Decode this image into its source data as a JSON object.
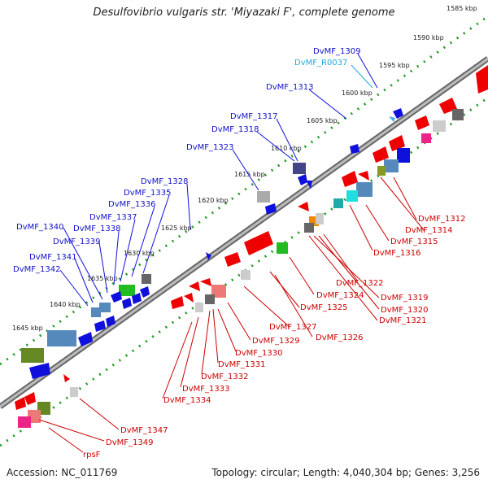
{
  "title": "Desulfovibrio vulgaris str. 'Miyazaki F', complete genome",
  "footer": {
    "accession": "Accession: NC_011769",
    "stats": "Topology: circular; Length: 4,040,304 bp; Genes: 3,256"
  },
  "ticks": [
    "1585 kbp",
    "1590 kbp",
    "1595 kbp",
    "1600 kbp",
    "1605 kbp",
    "1610 kbp",
    "1615 kbp",
    "1620 kbp",
    "1625 kbp",
    "1630 kbp",
    "1635 kbp",
    "1640 kbp",
    "1645 kbp"
  ],
  "labels_top": [
    "DvMF_1309",
    "DvMF_R0037",
    "DvMF_1313",
    "DvMF_1317",
    "DvMF_1318",
    "DvMF_1323",
    "DvMF_1328",
    "DvMF_1335",
    "DvMF_1336",
    "DvMF_1337",
    "DvMF_1338",
    "DvMF_1340",
    "DvMF_1339",
    "DvMF_1341",
    "DvMF_1342"
  ],
  "labels_bottom": [
    "DvMF_1312",
    "DvMF_1314",
    "DvMF_1315",
    "DvMF_1316",
    "DvMF_1322",
    "DvMF_1319",
    "DvMF_1320",
    "DvMF_1321",
    "DvMF_1324",
    "DvMF_1325",
    "DvMF_1327",
    "DvMF_1326",
    "DvMF_1329",
    "DvMF_1330",
    "DvMF_1331",
    "DvMF_1332",
    "DvMF_1333",
    "DvMF_1334",
    "DvMF_1347",
    "DvMF_1349",
    "rpsF"
  ],
  "colors": {
    "forward_gene": "#1010dd",
    "reverse_gene": "#ee0000",
    "rna_label": "#22aadd",
    "backbone": "#888888",
    "dots": "#229922"
  }
}
